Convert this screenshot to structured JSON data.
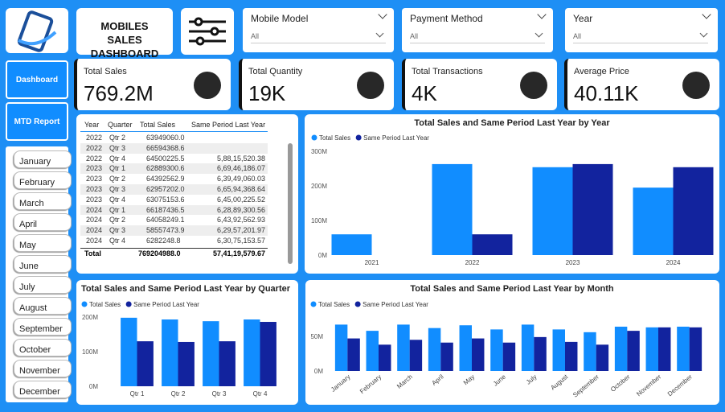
{
  "header": {
    "title": "MOBILES SALES DASHBOARD"
  },
  "nav": [
    "Dashboard",
    "MTD Report"
  ],
  "months": [
    "January",
    "February",
    "March",
    "April",
    "May",
    "June",
    "July",
    "August",
    "September",
    "October",
    "November",
    "December"
  ],
  "slicers": [
    {
      "label": "Mobile Model",
      "value": "All"
    },
    {
      "label": "Payment Method",
      "value": "All"
    },
    {
      "label": "Year",
      "value": "All"
    }
  ],
  "cards": [
    {
      "label": "Total Sales",
      "value": "769.2M"
    },
    {
      "label": "Total Quantity",
      "value": "19K"
    },
    {
      "label": "Total Transactions",
      "value": "4K"
    },
    {
      "label": "Average Price",
      "value": "40.11K"
    }
  ],
  "table": {
    "columns": [
      "Year",
      "Quarter",
      "Total Sales",
      "Same Period Last Year"
    ],
    "rows": [
      [
        "2022",
        "Qtr 2",
        "63949060.0",
        null
      ],
      [
        "2022",
        "Qtr 3",
        "66594368.6",
        null
      ],
      [
        "2022",
        "Qtr 4",
        "64500225.5",
        "5,88,15,520.38"
      ],
      [
        "2023",
        "Qtr 1",
        "62889300.6",
        "6,69,46,186.07"
      ],
      [
        "2023",
        "Qtr 2",
        "64392562.9",
        "6,39,49,060.03"
      ],
      [
        "2023",
        "Qtr 3",
        "62957202.0",
        "6,65,94,368.64"
      ],
      [
        "2023",
        "Qtr 4",
        "63075153.6",
        "6,45,00,225.52"
      ],
      [
        "2024",
        "Qtr 1",
        "66187436.5",
        "6,28,89,300.56"
      ],
      [
        "2024",
        "Qtr 2",
        "64058249.1",
        "6,43,92,562.93"
      ],
      [
        "2024",
        "Qtr 3",
        "58557473.9",
        "6,29,57,201.97"
      ],
      [
        "2024",
        "Qtr 4",
        "6282248.8",
        "6,30,75,153.57"
      ]
    ],
    "total": [
      "Total",
      "769204988.0",
      "57,41,19,579.67"
    ]
  },
  "chart_data": [
    {
      "type": "bar",
      "title": "Total Sales and Same Period Last Year by Year",
      "categories": [
        "2021",
        "2022",
        "2023",
        "2024"
      ],
      "series": [
        {
          "name": "Total Sales",
          "color": "#118dff",
          "values": [
            60,
            263,
            254,
            195
          ]
        },
        {
          "name": "Same Period Last Year",
          "color": "#12239e",
          "values": [
            null,
            60,
            263,
            254
          ]
        }
      ],
      "ylim": [
        0,
        300
      ],
      "yticks": [
        {
          "value": 0,
          "label": "0M"
        },
        {
          "value": 100,
          "label": "100M"
        },
        {
          "value": 200,
          "label": "200M"
        },
        {
          "value": 300,
          "label": "300M"
        }
      ]
    },
    {
      "type": "bar",
      "title": "Total Sales and Same Period Last Year by Quarter",
      "categories": [
        "Qtr 1",
        "Qtr 2",
        "Qtr 3",
        "Qtr 4"
      ],
      "series": [
        {
          "name": "Total Sales",
          "color": "#118dff",
          "values": [
            198,
            193,
            188,
            193
          ]
        },
        {
          "name": "Same Period Last Year",
          "color": "#12239e",
          "values": [
            130,
            128,
            130,
            186
          ]
        }
      ],
      "ylim": [
        0,
        210
      ],
      "yticks": [
        {
          "value": 0,
          "label": "0M"
        },
        {
          "value": 100,
          "label": "100M"
        },
        {
          "value": 200,
          "label": "200M"
        }
      ]
    },
    {
      "type": "bar",
      "title": "Total Sales and Same Period Last Year by Month",
      "categories": [
        "January",
        "February",
        "March",
        "April",
        "May",
        "June",
        "July",
        "August",
        "September",
        "October",
        "November",
        "December"
      ],
      "series": [
        {
          "name": "Total Sales",
          "color": "#118dff",
          "values": [
            67,
            58,
            67,
            62,
            66,
            60,
            67,
            60,
            56,
            64,
            63,
            64
          ]
        },
        {
          "name": "Same Period Last Year",
          "color": "#12239e",
          "values": [
            47,
            38,
            45,
            41,
            47,
            41,
            49,
            42,
            38,
            58,
            63,
            63
          ]
        }
      ],
      "ylim": [
        0,
        75
      ],
      "yticks": [
        {
          "value": 0,
          "label": "0M"
        },
        {
          "value": 50,
          "label": "50M"
        }
      ]
    }
  ]
}
